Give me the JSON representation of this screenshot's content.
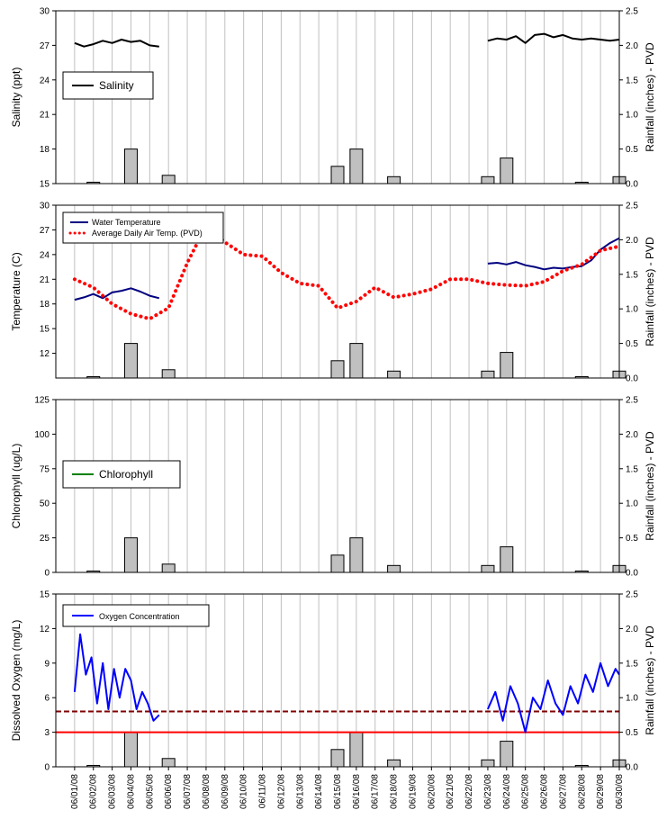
{
  "title": "",
  "dates": [
    "06/01/08",
    "06/02/08",
    "06/03/08",
    "06/04/08",
    "06/05/08",
    "06/06/08",
    "06/07/08",
    "06/08/08",
    "06/09/08",
    "06/10/08",
    "06/11/08",
    "06/12/08",
    "06/13/08",
    "06/14/08",
    "06/15/08",
    "06/16/08",
    "06/17/08",
    "06/18/08",
    "06/19/08",
    "06/20/08",
    "06/21/08",
    "06/22/08",
    "06/23/08",
    "06/24/08",
    "06/25/08",
    "06/26/08",
    "06/27/08",
    "06/28/08",
    "06/29/08",
    "06/30/08"
  ],
  "colors": {
    "salinity": "#000000",
    "water_temp": "#000080",
    "air_temp": "#ff0000",
    "chlorophyll": "#008000",
    "oxygen": "#0000ff",
    "rain_fill": "#c0c0c0",
    "grid": "#c0c0c0",
    "oxygen_threshold_high": "#800000",
    "oxygen_threshold_low": "#ff0000"
  },
  "chart_data": [
    {
      "type": "line",
      "ylabel": "Salinity (ppt)",
      "y2label": "Rainfall (inches) - PVD",
      "ylim": [
        15,
        30
      ],
      "yticks": [
        "15",
        "18",
        "21",
        "24",
        "27",
        "30"
      ],
      "y2lim": [
        0,
        2.5
      ],
      "y2ticks": [
        "0.0",
        "0.5",
        "1.0",
        "1.5",
        "2.0",
        "2.5"
      ],
      "legend": {
        "placement": "top-left",
        "entries": [
          "Salinity"
        ]
      },
      "series": [
        {
          "name": "Salinity",
          "segments": [
            {
              "x": [
                0.0,
                0.5,
                1.0,
                1.5,
                2.0,
                2.5,
                3.0,
                3.5,
                4.0,
                4.5
              ],
              "y": [
                27.2,
                26.9,
                27.1,
                27.4,
                27.2,
                27.5,
                27.3,
                27.4,
                27.0,
                26.9
              ]
            },
            {
              "x": [
                22.0,
                22.5,
                23.0,
                23.5,
                24.0,
                24.5,
                25.0,
                25.5,
                26.0,
                26.5,
                27.0,
                27.5,
                28.0,
                28.5,
                29.0
              ],
              "y": [
                27.4,
                27.6,
                27.5,
                27.8,
                27.2,
                27.9,
                28.0,
                27.7,
                27.9,
                27.6,
                27.5,
                27.6,
                27.5,
                27.4,
                27.5
              ]
            }
          ]
        }
      ],
      "rainfall": {
        "x": [
          1,
          3,
          5,
          14,
          15,
          17,
          22,
          23,
          27,
          29
        ],
        "values": [
          0.02,
          0.5,
          0.12,
          0.25,
          0.5,
          0.1,
          0.1,
          0.37,
          0.02,
          0.1
        ]
      }
    },
    {
      "type": "line",
      "ylabel": "Temperature (C)",
      "y2label": "Rainfall (inches) - PVD",
      "ylim": [
        9,
        30
      ],
      "yticks": [
        "12",
        "15",
        "18",
        "21",
        "24",
        "27",
        "30"
      ],
      "y2lim": [
        0,
        2.5
      ],
      "y2ticks": [
        "0.0",
        "0.5",
        "1.0",
        "1.5",
        "2.0",
        "2.5"
      ],
      "legend": {
        "placement": "top-left",
        "entries": [
          "Water Temperature",
          "Average Daily Air Temp. (PVD)"
        ]
      },
      "series": [
        {
          "name": "Water Temperature",
          "segments": [
            {
              "x": [
                0.0,
                0.5,
                1.0,
                1.5,
                2.0,
                2.5,
                3.0,
                3.5,
                4.0,
                4.5
              ],
              "y": [
                18.5,
                18.8,
                19.2,
                18.7,
                19.4,
                19.6,
                19.9,
                19.5,
                19.0,
                18.7
              ]
            },
            {
              "x": [
                22.0,
                22.5,
                23.0,
                23.5,
                24.0,
                24.5,
                25.0,
                25.5,
                26.0,
                26.5,
                27.0,
                27.5,
                28.0,
                28.5,
                29.0
              ],
              "y": [
                22.9,
                23.0,
                22.8,
                23.1,
                22.7,
                22.5,
                22.2,
                22.4,
                22.3,
                22.5,
                22.6,
                23.3,
                24.6,
                25.4,
                26.0
              ]
            }
          ]
        },
        {
          "name": "Average Daily Air Temp. (PVD)",
          "segments": [
            {
              "x": [
                0.0,
                1.0,
                2.0,
                3.0,
                4.0,
                5.0,
                6.0,
                7.0,
                8.0,
                9.0,
                10.0,
                11.0,
                12.0,
                13.0,
                14.0,
                15.0,
                16.0,
                17.0,
                18.0,
                19.0,
                20.0,
                21.0,
                22.0,
                23.0,
                24.0,
                25.0,
                26.0,
                27.0,
                28.0,
                29.0
              ],
              "y": [
                21.0,
                20.0,
                18.0,
                16.8,
                16.2,
                17.5,
                23.0,
                27.5,
                25.5,
                24.0,
                23.8,
                21.8,
                20.5,
                20.2,
                17.5,
                18.3,
                20.0,
                18.8,
                19.2,
                19.8,
                21.0,
                21.0,
                20.5,
                20.3,
                20.2,
                20.7,
                22.0,
                22.8,
                24.5,
                25.0
              ]
            }
          ]
        }
      ],
      "rainfall": {
        "x": [
          1,
          3,
          5,
          14,
          15,
          17,
          22,
          23,
          27,
          29
        ],
        "values": [
          0.02,
          0.5,
          0.12,
          0.25,
          0.5,
          0.1,
          0.1,
          0.37,
          0.02,
          0.1
        ]
      }
    },
    {
      "type": "line",
      "ylabel": "Chlorophyll (ug/L)",
      "y2label": "Rainfall (inches) - PVD",
      "ylim": [
        0,
        125
      ],
      "yticks": [
        "0",
        "25",
        "50",
        "75",
        "100",
        "125"
      ],
      "y2lim": [
        0,
        2.5
      ],
      "y2ticks": [
        "0.0",
        "0.5",
        "1.0",
        "1.5",
        "2.0",
        "2.5"
      ],
      "legend": {
        "placement": "top-left",
        "entries": [
          "Chlorophyll"
        ]
      },
      "series": [],
      "rainfall": {
        "x": [
          1,
          3,
          5,
          14,
          15,
          17,
          22,
          23,
          27,
          29
        ],
        "values": [
          0.02,
          0.5,
          0.12,
          0.25,
          0.5,
          0.1,
          0.1,
          0.37,
          0.02,
          0.1
        ]
      }
    },
    {
      "type": "line",
      "ylabel": "Dissolved Oxygen (mg/L)",
      "y2label": "Rainfall (inches) - PVD",
      "ylim": [
        0,
        15
      ],
      "yticks": [
        "0",
        "3",
        "6",
        "9",
        "12",
        "15"
      ],
      "y2lim": [
        0,
        2.5
      ],
      "y2ticks": [
        "0.0",
        "0.5",
        "1.0",
        "1.5",
        "2.0",
        "2.5"
      ],
      "legend": {
        "placement": "top-left",
        "entries": [
          "Oxygen Concentration"
        ]
      },
      "reference_lines": [
        4.8,
        3.0
      ],
      "series": [
        {
          "name": "Oxygen Concentration",
          "segments": [
            {
              "x": [
                0.0,
                0.3,
                0.6,
                0.9,
                1.2,
                1.5,
                1.8,
                2.1,
                2.4,
                2.7,
                3.0,
                3.3,
                3.6,
                3.9,
                4.2,
                4.5
              ],
              "y": [
                6.5,
                11.5,
                8.0,
                9.5,
                5.5,
                9.0,
                5.0,
                8.5,
                6.0,
                8.5,
                7.5,
                5.0,
                6.5,
                5.5,
                4.0,
                4.5
              ]
            },
            {
              "x": [
                22.0,
                22.4,
                22.8,
                23.2,
                23.6,
                24.0,
                24.4,
                24.8,
                25.2,
                25.6,
                26.0,
                26.4,
                26.8,
                27.2,
                27.6,
                28.0,
                28.4,
                28.8,
                29.0
              ],
              "y": [
                5.0,
                6.5,
                4.0,
                7.0,
                5.5,
                3.0,
                6.0,
                5.0,
                7.5,
                5.5,
                4.5,
                7.0,
                5.5,
                8.0,
                6.5,
                9.0,
                7.0,
                8.5,
                8.0
              ]
            }
          ]
        }
      ],
      "rainfall": {
        "x": [
          1,
          3,
          5,
          14,
          15,
          17,
          22,
          23,
          27,
          29
        ],
        "values": [
          0.02,
          0.5,
          0.12,
          0.25,
          0.5,
          0.1,
          0.1,
          0.37,
          0.02,
          0.1
        ]
      }
    }
  ]
}
